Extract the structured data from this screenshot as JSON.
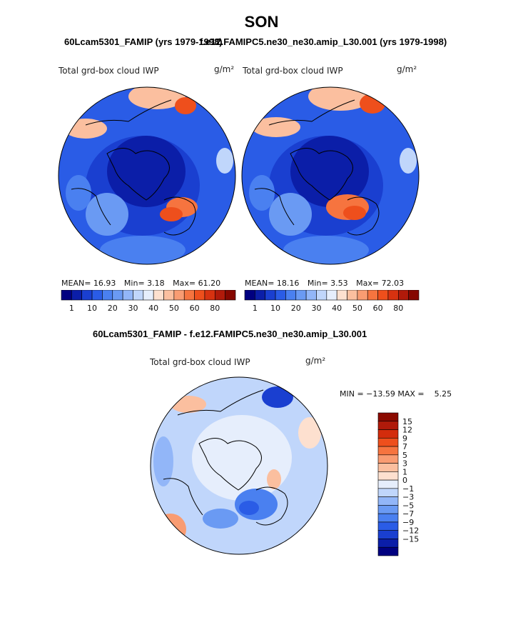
{
  "title": "SON",
  "panels": {
    "left": {
      "case_title": "60Lcam5301_FAMIP (yrs 1979-1998)",
      "field_label": "Total grd-box cloud IWP",
      "units": "g/m²",
      "mean_label": "MEAN=",
      "mean_value": "16.93",
      "min_label": "Min=",
      "min_value": "3.18",
      "max_label": "Max=",
      "max_value": "61.20"
    },
    "right": {
      "case_title": "f.e12.FAMIPC5.ne30_ne30.amip_L30.001 (yrs 1979-1998)",
      "field_label": "Total grd-box cloud IWP",
      "units": "g/m²",
      "mean_label": "MEAN=",
      "mean_value": "18.16",
      "min_label": "Min=",
      "min_value": "3.53",
      "max_label": "Max=",
      "max_value": "72.03"
    },
    "diff": {
      "case_title": "60Lcam5301_FAMIP - f.e12.FAMIPC5.ne30_ne30.amip_L30.001",
      "field_label": "Total grd-box cloud IWP",
      "units": "g/m²",
      "minmax_text": "MIN = −13.59 MAX =    5.25"
    }
  },
  "chart_data": [
    {
      "type": "heatmap",
      "name": "left",
      "projection": "north polar stereographic",
      "mean": 16.93,
      "min": 3.18,
      "max": 61.2,
      "colorbar_ticks": [
        "1",
        "10",
        "20",
        "30",
        "40",
        "50",
        "60",
        "80"
      ],
      "colorbar_colors": [
        "#000080",
        "#0b1ea8",
        "#1a3fd0",
        "#2a5ce6",
        "#4a80f0",
        "#6a9af3",
        "#92b6f8",
        "#c0d6fb",
        "#e6eefc",
        "#fde0cf",
        "#fbbf9f",
        "#f99c72",
        "#f6743f",
        "#ee4f1c",
        "#d73210",
        "#b01a0a",
        "#850700"
      ]
    },
    {
      "type": "heatmap",
      "name": "right",
      "projection": "north polar stereographic",
      "mean": 18.16,
      "min": 3.53,
      "max": 72.03,
      "colorbar_ticks": [
        "1",
        "10",
        "20",
        "30",
        "40",
        "50",
        "60",
        "80"
      ],
      "colorbar_colors": [
        "#000080",
        "#0b1ea8",
        "#1a3fd0",
        "#2a5ce6",
        "#4a80f0",
        "#6a9af3",
        "#92b6f8",
        "#c0d6fb",
        "#e6eefc",
        "#fde0cf",
        "#fbbf9f",
        "#f99c72",
        "#f6743f",
        "#ee4f1c",
        "#d73210",
        "#b01a0a",
        "#850700"
      ]
    },
    {
      "type": "heatmap",
      "name": "difference",
      "projection": "north polar stereographic",
      "min": -13.59,
      "max": 5.25,
      "colorbar_ticks": [
        "15",
        "12",
        "9",
        "7",
        "5",
        "3",
        "1",
        "0",
        "−1",
        "−3",
        "−5",
        "−7",
        "−9",
        "−12",
        "−15"
      ],
      "colorbar_colors": [
        "#8b0a00",
        "#b01a0a",
        "#d32c0c",
        "#ee4f1c",
        "#f6743f",
        "#f99c72",
        "#fbbf9f",
        "#fde0cf",
        "#e6eefc",
        "#c0d6fb",
        "#92b6f8",
        "#6a9af3",
        "#4a80f0",
        "#2a5ce6",
        "#1a3fd0",
        "#0b1ea8",
        "#000080"
      ]
    }
  ]
}
